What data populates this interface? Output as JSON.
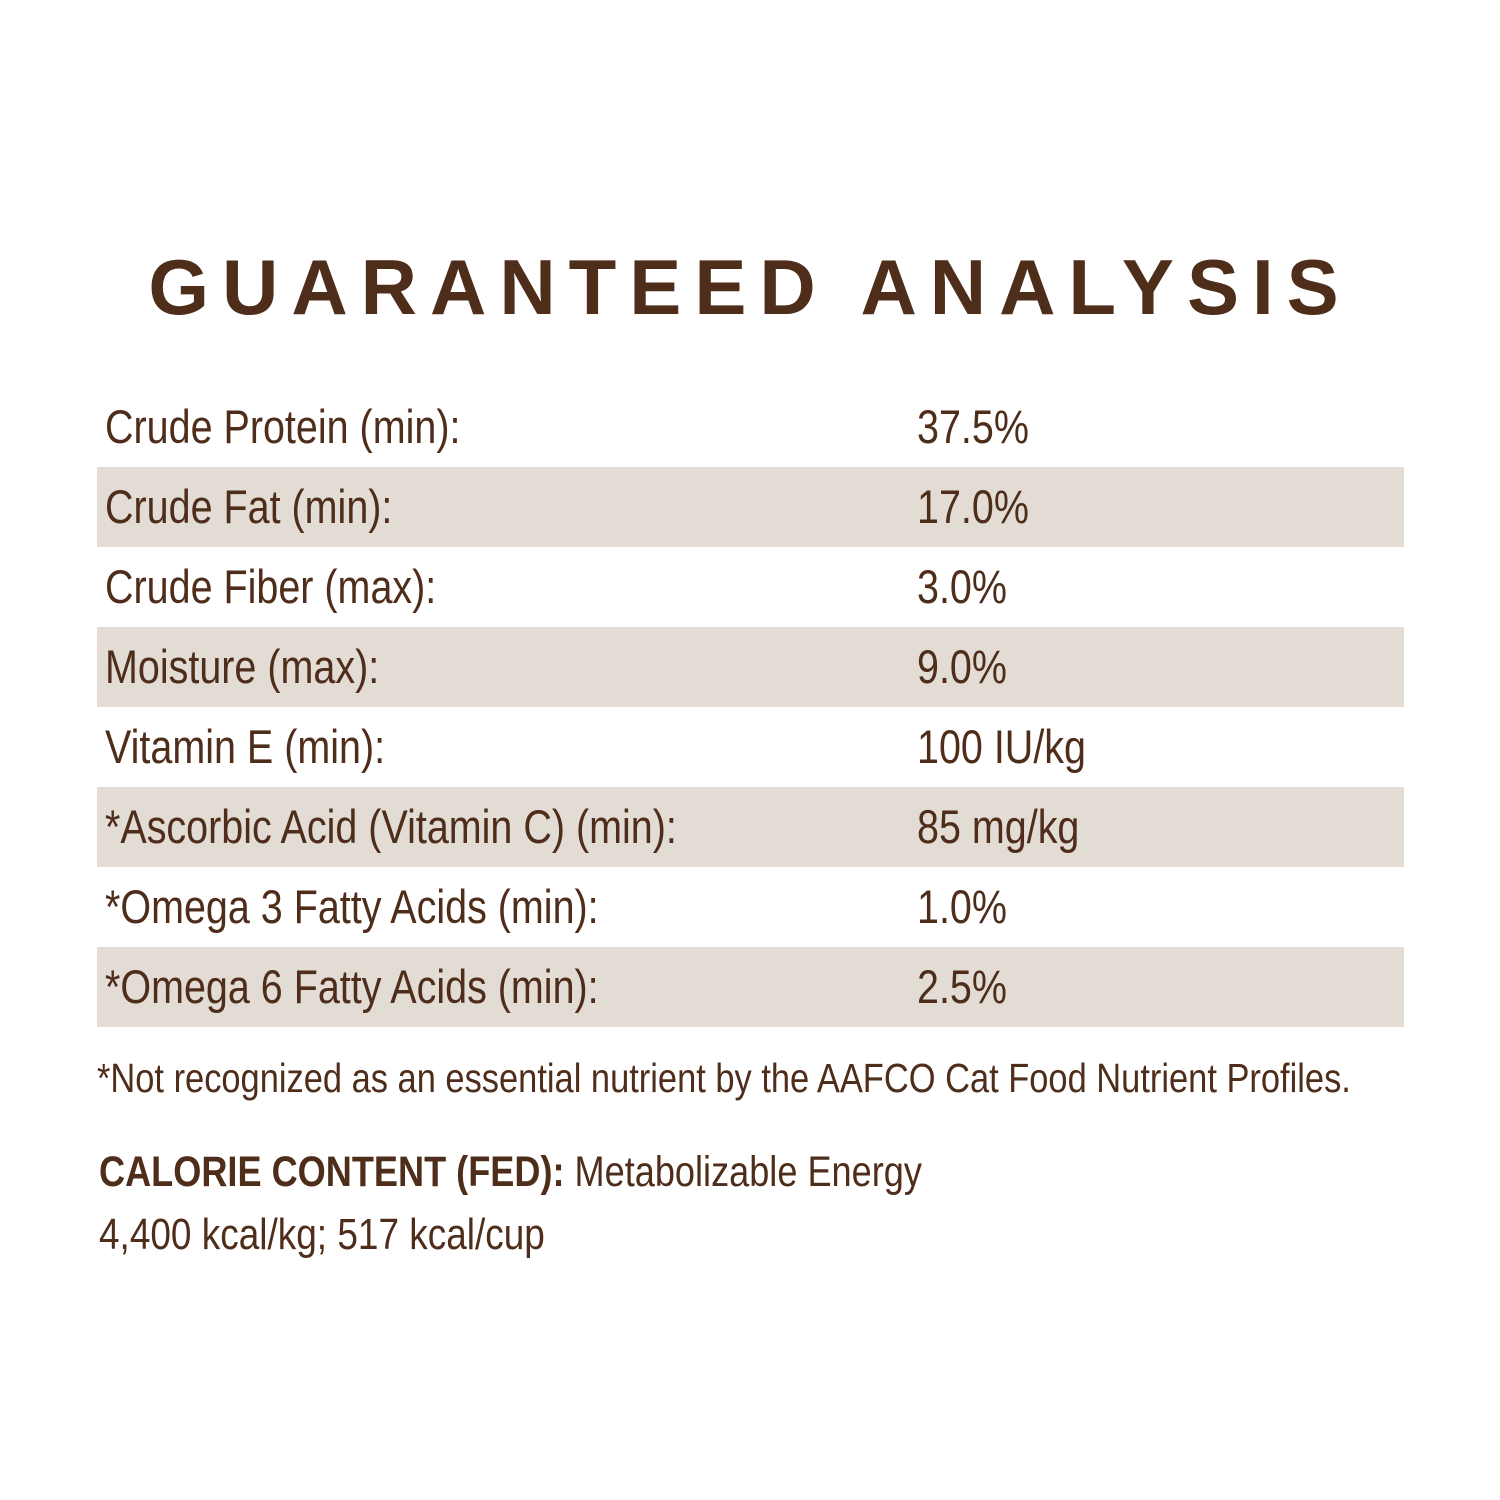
{
  "title": "GUARANTEED ANALYSIS",
  "colors": {
    "text_brown": "#4F2D1B",
    "row_shade": "#E2DCD5",
    "background": "#FFFFFF"
  },
  "table": {
    "rows": [
      {
        "label": "Crude Protein (min):",
        "value": "37.5%",
        "shaded": false
      },
      {
        "label": "Crude Fat (min):",
        "value": "17.0%",
        "shaded": true
      },
      {
        "label": "Crude Fiber (max):",
        "value": "3.0%",
        "shaded": false
      },
      {
        "label": "Moisture (max):",
        "value": "9.0%",
        "shaded": true
      },
      {
        "label": "Vitamin E (min):",
        "value": "100 IU/kg",
        "shaded": false
      },
      {
        "label": "*Ascorbic Acid (Vitamin C) (min):",
        "value": "85 mg/kg",
        "shaded": true
      },
      {
        "label": "*Omega 3 Fatty Acids (min):",
        "value": "1.0%",
        "shaded": false
      },
      {
        "label": "*Omega 6 Fatty Acids (min):",
        "value": "2.5%",
        "shaded": true
      }
    ]
  },
  "footnote": "*Not recognized as an essential nutrient by the AAFCO Cat Food Nutrient Profiles.",
  "calorie": {
    "heading": "CALORIE CONTENT (FED):",
    "subtitle": "Metabolizable Energy",
    "line2": "4,400 kcal/kg; 517 kcal/cup"
  }
}
